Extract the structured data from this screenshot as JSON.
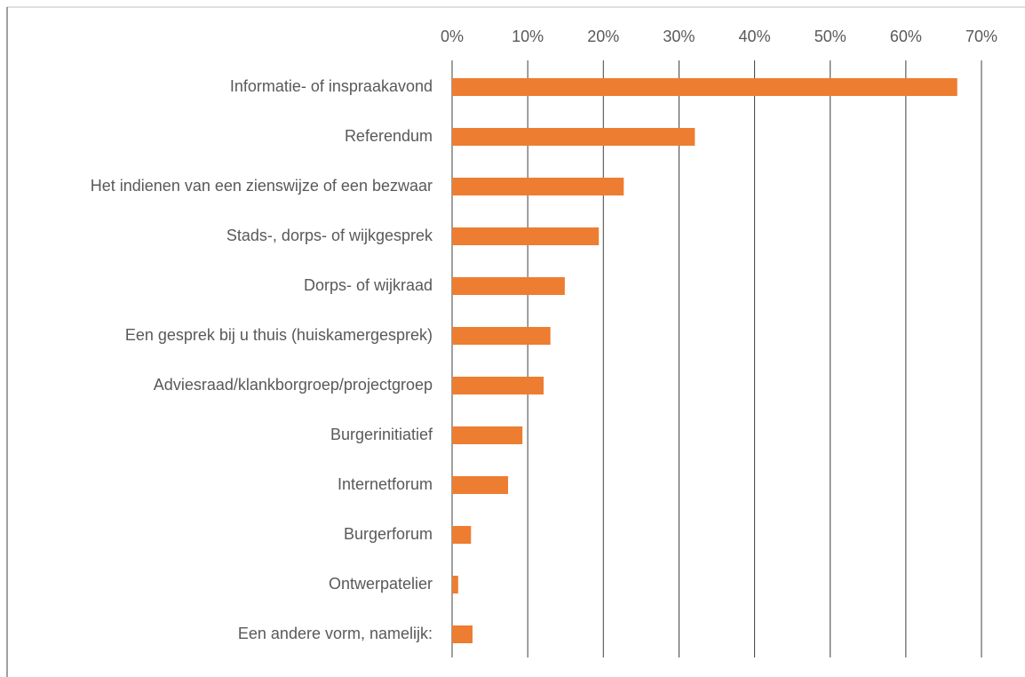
{
  "chart_data": {
    "type": "hbar",
    "categories": [
      "Informatie- of inspraakavond",
      "Referendum",
      "Het indienen van een zienswijze of een bezwaar",
      "Stads-, dorps- of wijkgesprek",
      "Dorps- of wijkraad",
      "Een gesprek bij u thuis (huiskamergesprek)",
      "Adviesraad/klankborgroep/projectgroep",
      "Burgerinitiatief",
      "Internetforum",
      "Burgerforum",
      "Ontwerpatelier",
      "Een andere vorm, namelijk:"
    ],
    "values": [
      66.8,
      32.1,
      22.7,
      19.4,
      14.9,
      13.0,
      12.1,
      9.3,
      7.4,
      2.5,
      0.8,
      2.7
    ],
    "color": "#ed7d31",
    "xlim": [
      0,
      70
    ],
    "xticks": [
      {
        "value": 0,
        "label": "0%"
      },
      {
        "value": 10,
        "label": "10%"
      },
      {
        "value": 20,
        "label": "20%"
      },
      {
        "value": 30,
        "label": "30%"
      },
      {
        "value": 40,
        "label": "40%"
      },
      {
        "value": 50,
        "label": "50%"
      },
      {
        "value": 60,
        "label": "60%"
      },
      {
        "value": 70,
        "label": "70%"
      }
    ],
    "grid": true
  }
}
